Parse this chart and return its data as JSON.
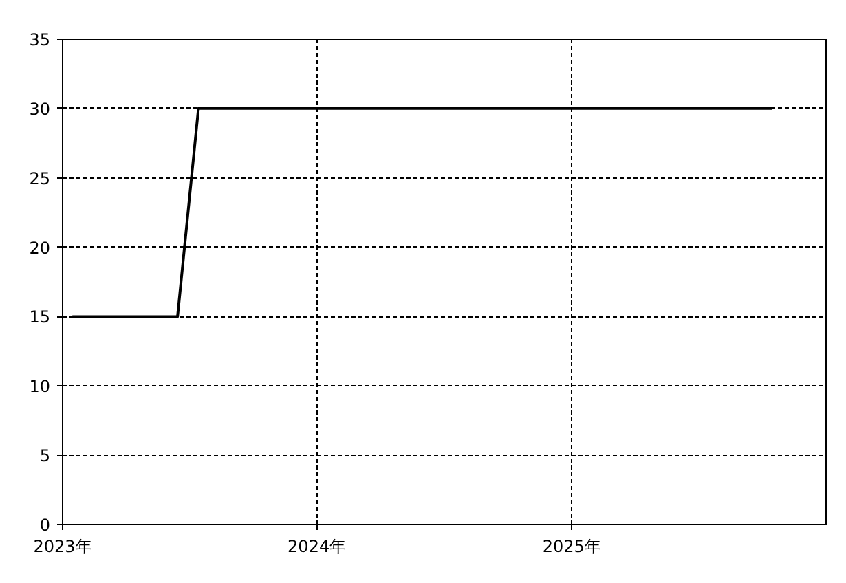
{
  "chart_data": {
    "type": "line",
    "x": [
      "2023-01-15",
      "2023-06-15",
      "2023-07-15",
      "2025-10-15"
    ],
    "series": [
      {
        "color": "#000000",
        "values": [
          15,
          15,
          30,
          30
        ]
      }
    ],
    "xlim": [
      "2023-01-01",
      "2026-01-01"
    ],
    "xticks": [
      {
        "value": "2023-01-01",
        "label": "2023年"
      },
      {
        "value": "2024-01-01",
        "label": "2024年"
      },
      {
        "value": "2025-01-01",
        "label": "2025年"
      }
    ],
    "ylim": [
      0,
      35
    ],
    "yticks": [
      0,
      5,
      10,
      15,
      20,
      25,
      30,
      35
    ],
    "grid": true,
    "marker": "none",
    "line_style": "solid"
  }
}
